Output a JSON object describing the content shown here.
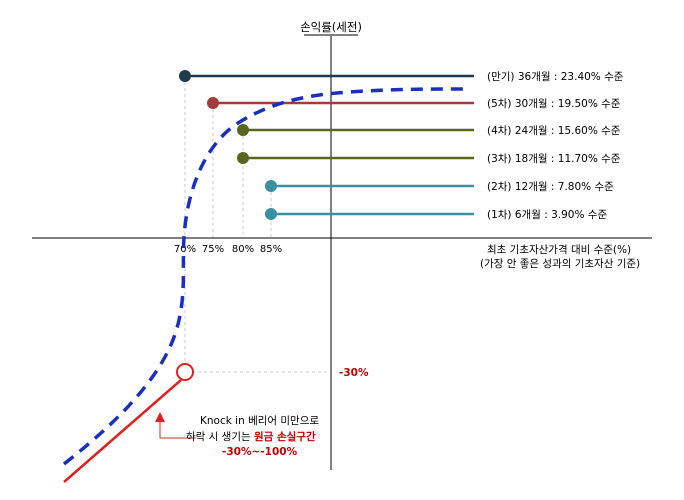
{
  "y_axis_label": "손익률(세전)",
  "x_axis_label_line1": "최초 기초자산가격 대비 수준(%)",
  "x_axis_label_line2": "(가장 안 좋은 성과의 기초자산 기준)",
  "loss_level_label": "-30%",
  "knockin_note": {
    "line1": "Knock in 베리어 미만으로",
    "line2_prefix": "하락 시 생기는 ",
    "line2_highlight": "원금 손실구간",
    "line3": "-30%~-100%"
  },
  "barrier_ticks": [
    "70%",
    "75%",
    "80%",
    "85%"
  ],
  "payoff_levels": [
    {
      "label": "(만기) 36개월 : 23.40% 수준",
      "color": "#1f3a4d",
      "barrier_pct": 70,
      "return_pct": 23.4
    },
    {
      "label": "(5차) 30개월 : 19.50% 수준",
      "color": "#a23a40",
      "barrier_pct": 75,
      "return_pct": 19.5
    },
    {
      "label": "(4차) 24개월 : 15.60% 수준",
      "color": "#5a6524",
      "barrier_pct": 80,
      "return_pct": 15.6
    },
    {
      "label": "(3차) 18개월 : 11.70% 수준",
      "color": "#5a6524",
      "barrier_pct": 80,
      "return_pct": 11.7
    },
    {
      "label": "(2차) 12개월 : 7.80% 수준",
      "color": "#3a8fa0",
      "barrier_pct": 85,
      "return_pct": 7.8
    },
    {
      "label": "(1차) 6개월 : 3.90% 수준",
      "color": "#3a8fa0",
      "barrier_pct": 85,
      "return_pct": 3.9
    }
  ],
  "colors": {
    "axis": "#000000",
    "dashed_curve": "#1a2fbf",
    "loss_line": "#e02020",
    "loss_text": "#c00000",
    "guide": "#c8c8c8"
  }
}
